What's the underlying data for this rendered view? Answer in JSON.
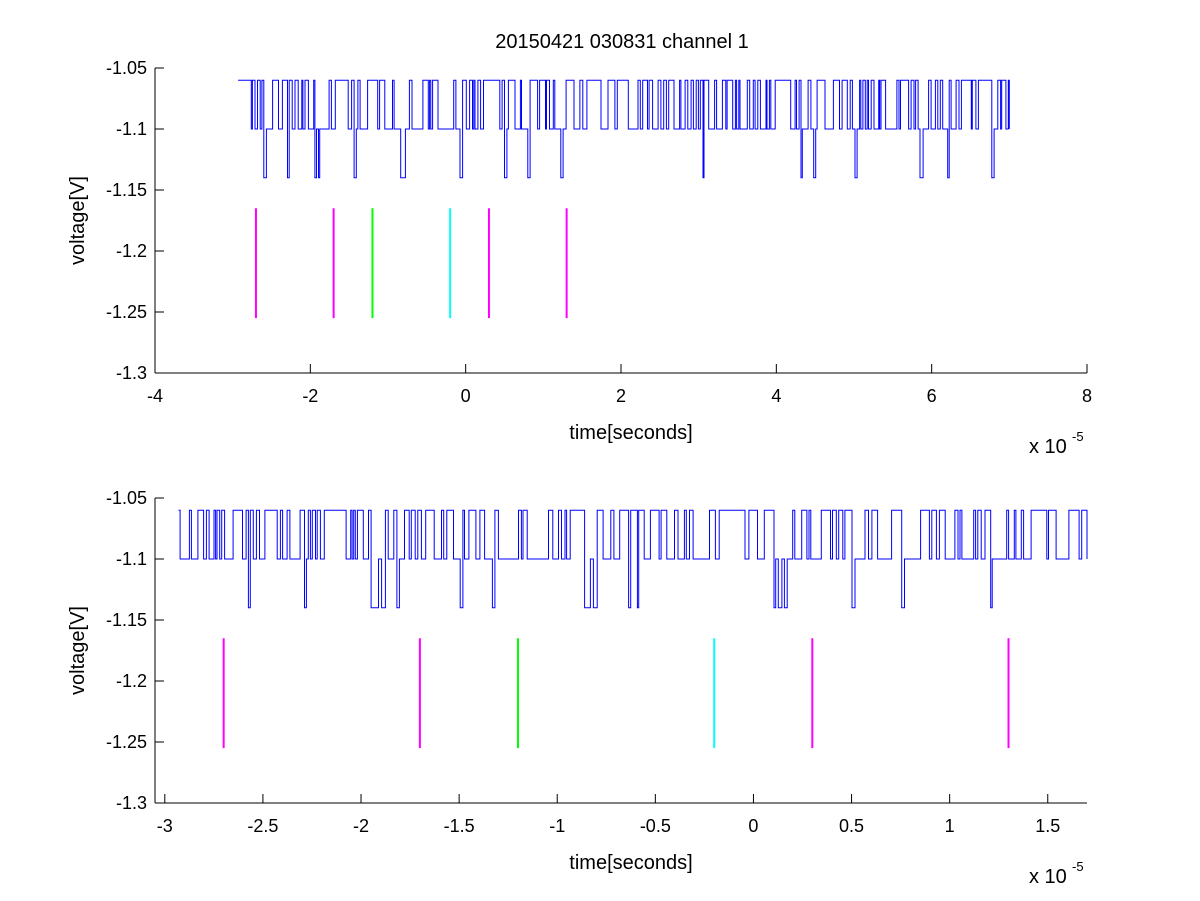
{
  "figure": {
    "title": "20150421 030831 channel 1",
    "trace_color": "#0000ff",
    "marker_colors": {
      "magenta": "#ff00ff",
      "green": "#00ff00",
      "cyan": "#00ffff"
    }
  },
  "chart_data": [
    {
      "type": "line",
      "title": "20150421 030831 channel 1",
      "xlabel": "time[seconds]",
      "ylabel": "voltage[V]",
      "x_multiplier_label": "x 10",
      "x_multiplier_exponent": "-5",
      "xlim": [
        -4,
        8
      ],
      "ylim": [
        -1.3,
        -1.05
      ],
      "xticks": [
        -4,
        -2,
        0,
        2,
        4,
        6,
        8
      ],
      "xtick_labels": [
        "-4",
        "-2",
        "0",
        "2",
        "4",
        "6",
        "8"
      ],
      "yticks": [
        -1.05,
        -1.1,
        -1.15,
        -1.2,
        -1.25,
        -1.3
      ],
      "ytick_labels": [
        "-1.05",
        "-1.1",
        "-1.15",
        "-1.2",
        "-1.25",
        "-1.3"
      ],
      "grid": false,
      "signal": {
        "x_range": [
          -2.93,
          7.0
        ],
        "levels": [
          -1.06,
          -1.1,
          -1.14
        ],
        "baseline": -1.1,
        "low_dips": [
          -2.6,
          -2.3,
          -1.95,
          -1.9,
          -1.45,
          -0.85,
          -0.83,
          -0.1,
          0.5,
          0.8,
          1.2,
          3.05,
          4.3,
          4.45,
          5.0,
          5.85,
          6.2,
          6.75
        ]
      },
      "markers": [
        {
          "x": -2.7,
          "y_range": [
            -1.255,
            -1.165
          ],
          "color": "magenta"
        },
        {
          "x": -1.7,
          "y_range": [
            -1.255,
            -1.165
          ],
          "color": "magenta"
        },
        {
          "x": -1.2,
          "y_range": [
            -1.255,
            -1.165
          ],
          "color": "green"
        },
        {
          "x": -0.2,
          "y_range": [
            -1.255,
            -1.165
          ],
          "color": "cyan"
        },
        {
          "x": 0.3,
          "y_range": [
            -1.255,
            -1.165
          ],
          "color": "magenta"
        },
        {
          "x": 1.3,
          "y_range": [
            -1.255,
            -1.165
          ],
          "color": "magenta"
        }
      ]
    },
    {
      "type": "line",
      "xlabel": "time[seconds]",
      "ylabel": "voltage[V]",
      "x_multiplier_label": "x 10",
      "x_multiplier_exponent": "-5",
      "xlim": [
        -3.05,
        1.7
      ],
      "ylim": [
        -1.3,
        -1.05
      ],
      "xticks": [
        -3,
        -2.5,
        -2,
        -1.5,
        -1,
        -0.5,
        0,
        0.5,
        1,
        1.5
      ],
      "xtick_labels": [
        "-3",
        "-2.5",
        "-2",
        "-1.5",
        "-1",
        "-0.5",
        "0",
        "0.5",
        "1",
        "1.5"
      ],
      "yticks": [
        -1.05,
        -1.1,
        -1.15,
        -1.2,
        -1.25,
        -1.3
      ],
      "ytick_labels": [
        "-1.05",
        "-1.1",
        "-1.15",
        "-1.2",
        "-1.25",
        "-1.3"
      ],
      "grid": false,
      "signal": {
        "x_range": [
          -2.93,
          1.7
        ],
        "levels": [
          -1.06,
          -1.1,
          -1.14
        ],
        "baseline": -1.1,
        "low_dips": [
          -2.58,
          -2.29,
          -1.95,
          -1.93,
          -1.91,
          -1.83,
          -1.5,
          -1.34,
          -0.87,
          -0.85,
          -0.83,
          -0.64,
          -0.6,
          0.1,
          0.12,
          0.15,
          0.5,
          0.75,
          1.2
        ]
      },
      "markers": [
        {
          "x": -2.7,
          "y_range": [
            -1.255,
            -1.165
          ],
          "color": "magenta"
        },
        {
          "x": -1.7,
          "y_range": [
            -1.255,
            -1.165
          ],
          "color": "magenta"
        },
        {
          "x": -1.2,
          "y_range": [
            -1.255,
            -1.165
          ],
          "color": "green"
        },
        {
          "x": -0.2,
          "y_range": [
            -1.255,
            -1.165
          ],
          "color": "cyan"
        },
        {
          "x": 0.3,
          "y_range": [
            -1.255,
            -1.165
          ],
          "color": "magenta"
        },
        {
          "x": 1.3,
          "y_range": [
            -1.255,
            -1.165
          ],
          "color": "magenta"
        }
      ]
    }
  ]
}
